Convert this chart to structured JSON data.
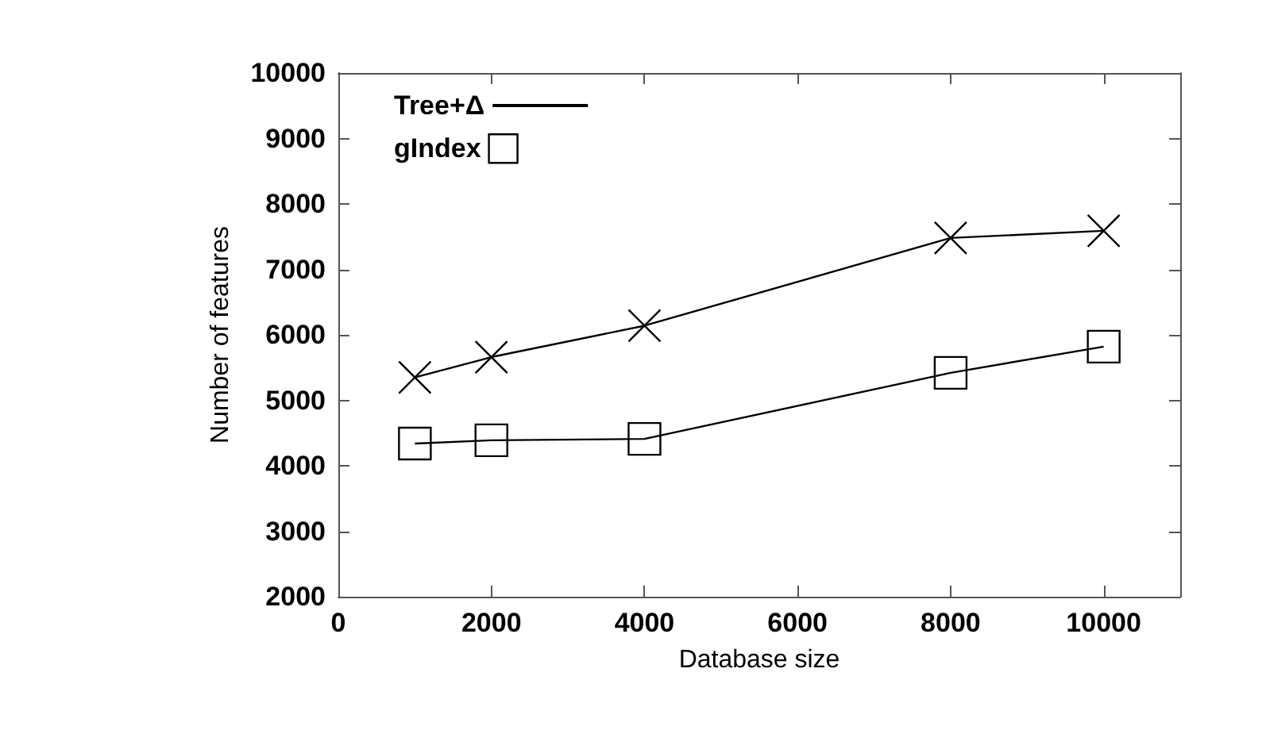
{
  "chart_data": {
    "type": "line",
    "xlabel": "Database size",
    "ylabel": "Number of features",
    "x": [
      1000,
      2000,
      4000,
      8000,
      10000
    ],
    "series": [
      {
        "name": "Tree+Δ",
        "color": "#000000",
        "marker": "cross",
        "values": [
          5350,
          5660,
          6140,
          7480,
          7590
        ]
      },
      {
        "name": "gIndex",
        "color": "#000000",
        "marker": "square",
        "values": [
          4340,
          4390,
          4410,
          5420,
          5820
        ]
      }
    ],
    "xlim": [
      0,
      11000
    ],
    "xticks": [
      0,
      2000,
      4000,
      6000,
      8000,
      10000
    ],
    "ylim": [
      2000,
      10000
    ],
    "yticks": [
      2000,
      3000,
      4000,
      5000,
      6000,
      7000,
      8000,
      9000,
      10000
    ],
    "grid": false,
    "legend": "top left",
    "line_style": "solid"
  }
}
